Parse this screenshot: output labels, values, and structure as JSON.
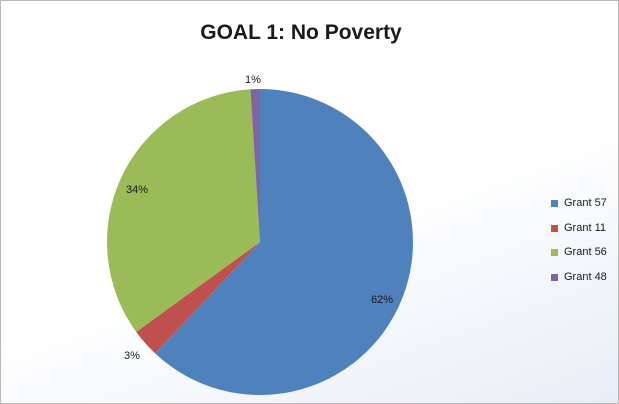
{
  "chart_data": {
    "type": "pie",
    "title": "GOAL 1: No Poverty",
    "categories": [
      "Grant 57",
      "Grant 11",
      "Grant 56",
      "Grant 48"
    ],
    "values": [
      62,
      3,
      34,
      1
    ],
    "value_labels": [
      "62%",
      "3%",
      "34%",
      "1%"
    ],
    "colors": [
      "#4f81bd",
      "#c0504d",
      "#9bbb59",
      "#8064a2"
    ],
    "legend_position": "right"
  }
}
